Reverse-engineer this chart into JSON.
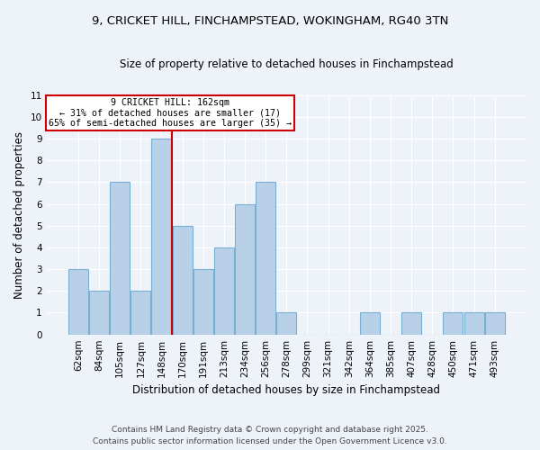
{
  "title_line1": "9, CRICKET HILL, FINCHAMPSTEAD, WOKINGHAM, RG40 3TN",
  "title_line2": "Size of property relative to detached houses in Finchampstead",
  "xlabel": "Distribution of detached houses by size in Finchampstead",
  "ylabel": "Number of detached properties",
  "categories": [
    "62sqm",
    "84sqm",
    "105sqm",
    "127sqm",
    "148sqm",
    "170sqm",
    "191sqm",
    "213sqm",
    "234sqm",
    "256sqm",
    "278sqm",
    "299sqm",
    "321sqm",
    "342sqm",
    "364sqm",
    "385sqm",
    "407sqm",
    "428sqm",
    "450sqm",
    "471sqm",
    "493sqm"
  ],
  "values": [
    3,
    2,
    7,
    2,
    9,
    5,
    3,
    4,
    6,
    7,
    1,
    0,
    0,
    0,
    1,
    0,
    1,
    0,
    1,
    1,
    1
  ],
  "bar_color": "#b8d0e8",
  "bar_edgecolor": "#7aafd4",
  "subject_label": "9 CRICKET HILL: 162sqm",
  "annotation_line2": "← 31% of detached houses are smaller (17)",
  "annotation_line3": "65% of semi-detached houses are larger (35) →",
  "annotation_box_color": "#ffffff",
  "annotation_box_edgecolor": "#cc0000",
  "vline_color": "#cc0000",
  "ylim": [
    0,
    11
  ],
  "yticks": [
    0,
    1,
    2,
    3,
    4,
    5,
    6,
    7,
    8,
    9,
    10,
    11
  ],
  "footer_line1": "Contains HM Land Registry data © Crown copyright and database right 2025.",
  "footer_line2": "Contains public sector information licensed under the Open Government Licence v3.0.",
  "background_color": "#eef2f9",
  "grid_color": "#ffffff"
}
